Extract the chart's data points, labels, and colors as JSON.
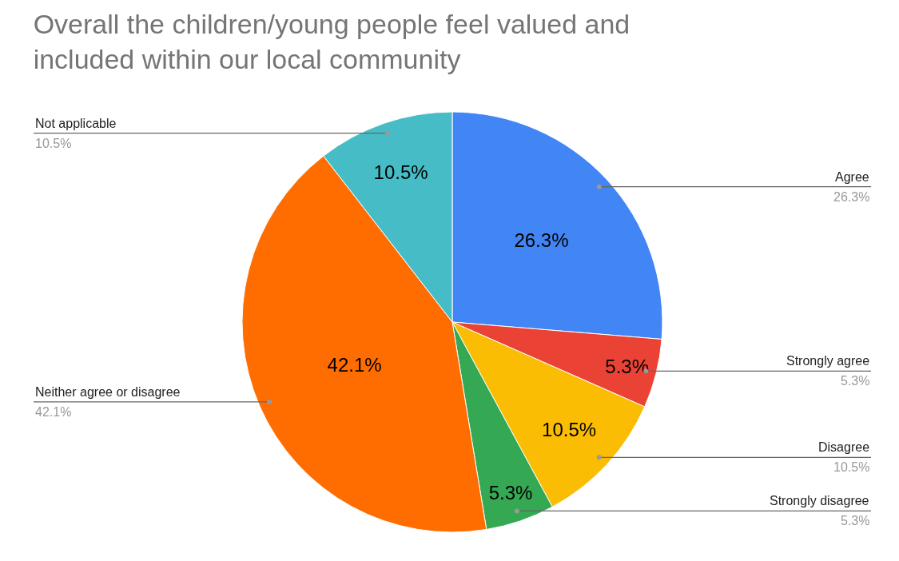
{
  "chart_data": {
    "type": "pie",
    "title": "Overall the children/young people feel valued and included within our local community",
    "categories": [
      "Agree",
      "Strongly agree",
      "Disagree",
      "Strongly disagree",
      "Neither agree or disagree",
      "Not applicable"
    ],
    "values": [
      26.3,
      5.3,
      10.5,
      5.3,
      42.1,
      10.5
    ],
    "colors": [
      "#4285f4",
      "#ea4335",
      "#fbbc04",
      "#34a853",
      "#ff6d01",
      "#46bdc6"
    ],
    "value_labels": [
      "26.3%",
      "5.3%",
      "10.5%",
      "5.3%",
      "42.1%",
      "10.5%"
    ],
    "legend": false
  }
}
